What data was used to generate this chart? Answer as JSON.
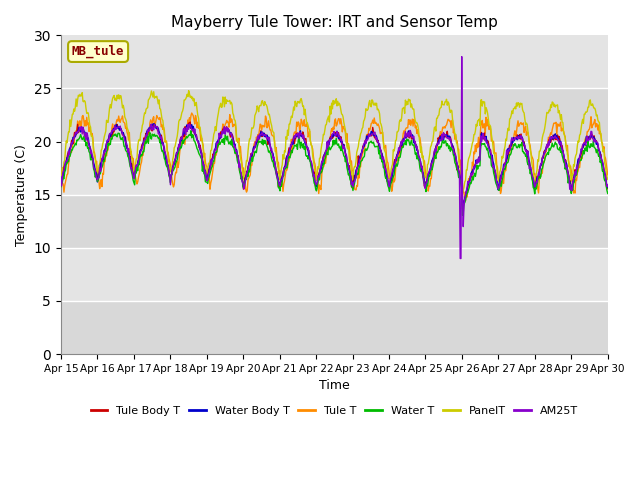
{
  "title": "Mayberry Tule Tower: IRT and Sensor Temp",
  "xlabel": "Time",
  "ylabel": "Temperature (C)",
  "ylim": [
    0,
    30
  ],
  "yticks": [
    0,
    5,
    10,
    15,
    20,
    25,
    30
  ],
  "date_labels": [
    "Apr 15",
    "Apr 16",
    "Apr 17",
    "Apr 18",
    "Apr 19",
    "Apr 20",
    "Apr 21",
    "Apr 22",
    "Apr 23",
    "Apr 24",
    "Apr 25",
    "Apr 26",
    "Apr 27",
    "Apr 28",
    "Apr 29",
    "Apr 30"
  ],
  "legend_labels": [
    "Tule Body T",
    "Water Body T",
    "Tule T",
    "Water T",
    "PanelT",
    "AM25T"
  ],
  "legend_colors": [
    "#cc0000",
    "#0000cc",
    "#ff8c00",
    "#00bb00",
    "#cccc00",
    "#8800cc"
  ],
  "watermark_text": "MB_tule",
  "watermark_color": "#880000",
  "watermark_bg": "#ffffcc",
  "bg_color": "#dcdcdc",
  "band_colors": [
    "#dcdcdc",
    "#e8e8e8"
  ],
  "n_points": 720
}
